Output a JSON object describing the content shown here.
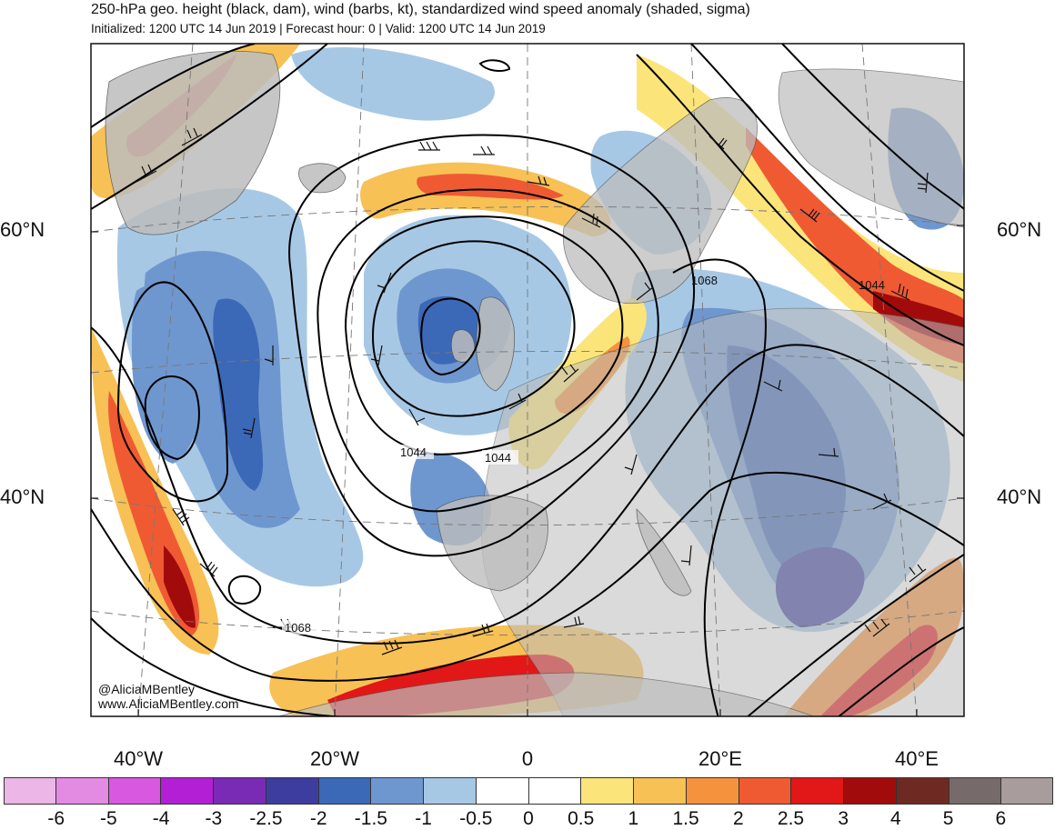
{
  "header": {
    "title": "250-hPa geo. height (black, dam), wind (barbs, kt), standardized wind speed anomaly (shaded, sigma)",
    "subtitle": "Initialized: 1200 UTC 14 Jun 2019 | Forecast hour: 0 | Valid: 1200 UTC 14 Jun 2019"
  },
  "map": {
    "lat_labels": {
      "lat60_left": "60°N",
      "lat60_right": "60°N",
      "lat40_left": "40°N",
      "lat40_right": "40°N"
    },
    "lon_labels": {
      "w40": "40°W",
      "w20": "20°W",
      "zero": "0",
      "e20": "20°E",
      "e40": "40°E"
    },
    "contour_labels": [
      "1068",
      "1044",
      "1044",
      "1044",
      "1068"
    ],
    "credits": {
      "twitter": "@AliciaMBentley",
      "website": "www.AliciaMBentley.com"
    }
  },
  "colorbar": {
    "colors": [
      "#ecb6e6",
      "#e38be2",
      "#d858df",
      "#b31fd4",
      "#7a2bb5",
      "#3d3d9f",
      "#3c68b8",
      "#6f97cf",
      "#a7c8e5",
      "#ffffff",
      "#ffffff",
      "#fbe57a",
      "#f7c155",
      "#f5923e",
      "#ef5a33",
      "#e21717",
      "#a20b0b",
      "#6e2a22",
      "#766b6a",
      "#a89c9c"
    ],
    "ticks": [
      "-6",
      "-5",
      "-4",
      "-3",
      "-2.5",
      "-2",
      "-1.5",
      "-1",
      "-0.5",
      "0",
      "0.5",
      "1",
      "1.5",
      "2",
      "2.5",
      "3",
      "4",
      "5",
      "6"
    ]
  }
}
